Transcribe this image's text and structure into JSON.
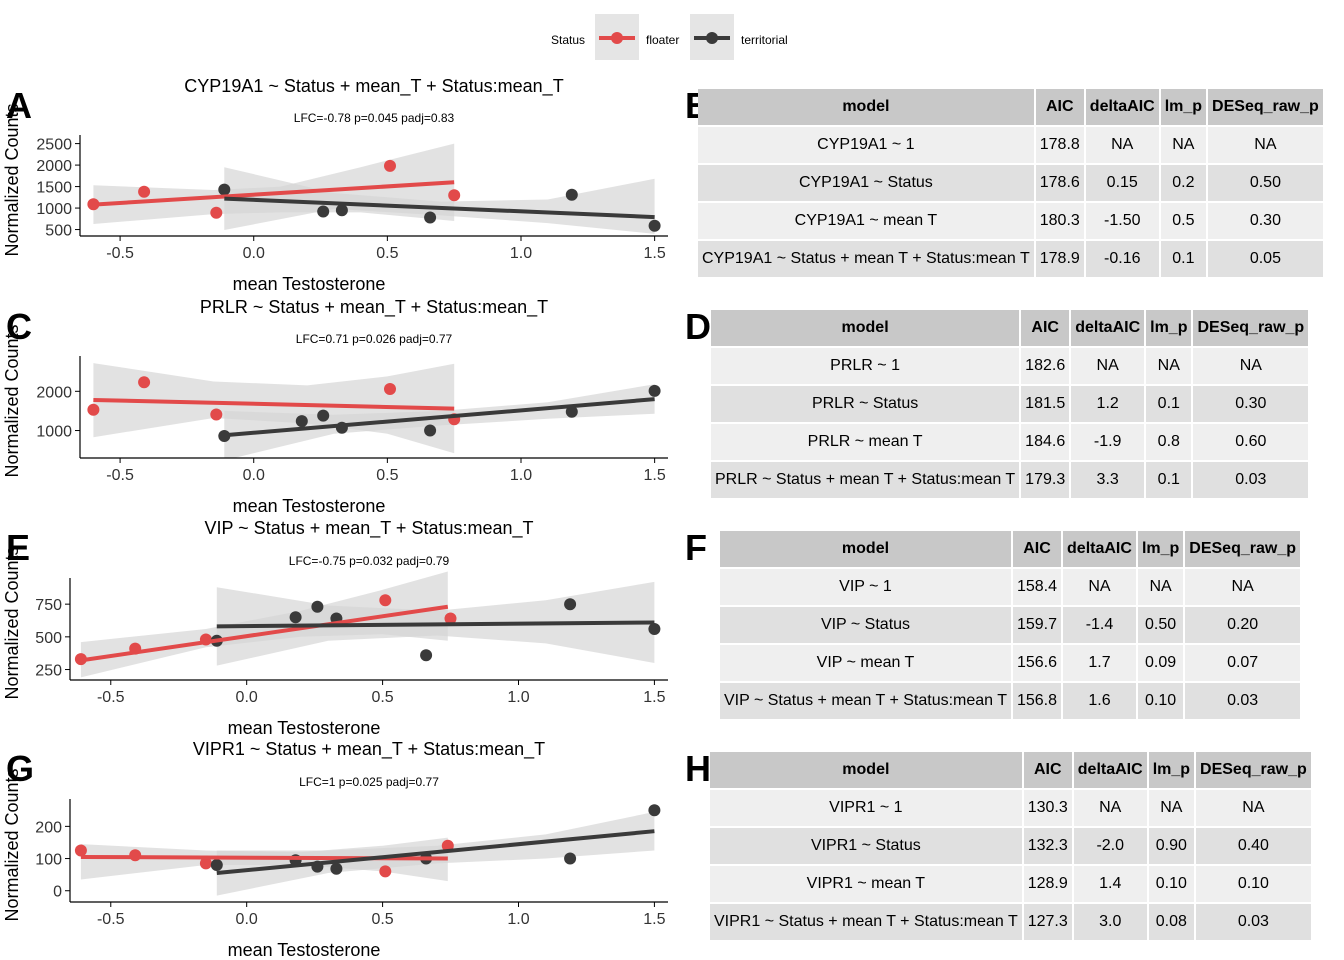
{
  "legend": {
    "title": "Status",
    "entries": [
      {
        "label": "floater",
        "color": "#e24a4a"
      },
      {
        "label": "territorial",
        "color": "#3a3a3a"
      }
    ]
  },
  "colors": {
    "floater": "#e24a4a",
    "territorial": "#3a3a3a",
    "ribbon": "#d5d5d5",
    "table_header": "#c8c8c8"
  },
  "chart_data": [
    {
      "type": "scatter",
      "letter": "A",
      "title": "CYP19A1 ~ Status + mean_T + Status:mean_T",
      "subtitle": "LFC=-0.78 p=0.045 padj=0.83",
      "xlabel": "mean Testosterone",
      "ylabel": "Normalized Counts",
      "xlim": [
        -0.65,
        1.55
      ],
      "ylim": [
        350,
        2700
      ],
      "xticks": [
        -0.5,
        0.0,
        0.5,
        1.0,
        1.5
      ],
      "xtick_labels": [
        "-0.5",
        "0.0",
        "0.5",
        "1.0",
        "1.5"
      ],
      "yticks": [
        500,
        1000,
        1500,
        2000,
        2500
      ],
      "ytick_labels": [
        "500",
        "1000",
        "1500",
        "2000",
        "2500"
      ],
      "series": [
        {
          "name": "floater",
          "points": [
            [
              -0.6,
              1090
            ],
            [
              -0.41,
              1380
            ],
            [
              -0.14,
              890
            ],
            [
              0.51,
              1980
            ],
            [
              0.75,
              1300
            ]
          ],
          "fit": [
            [
              -0.6,
              1080
            ],
            [
              0.75,
              1600
            ]
          ],
          "ribbon_upper": [
            [
              -0.6,
              1530
            ],
            [
              -0.15,
              1420
            ],
            [
              0.1,
              1500
            ],
            [
              0.4,
              1950
            ],
            [
              0.75,
              2500
            ]
          ],
          "ribbon_lower": [
            [
              -0.6,
              630
            ],
            [
              -0.15,
              860
            ],
            [
              0.1,
              900
            ],
            [
              0.4,
              900
            ],
            [
              0.75,
              700
            ]
          ]
        },
        {
          "name": "territorial",
          "points": [
            [
              -0.11,
              1430
            ],
            [
              0.26,
              920
            ],
            [
              0.33,
              950
            ],
            [
              0.66,
              780
            ],
            [
              1.19,
              1310
            ],
            [
              1.5,
              590
            ]
          ],
          "fit": [
            [
              -0.11,
              1220
            ],
            [
              1.5,
              790
            ]
          ],
          "ribbon_upper": [
            [
              -0.11,
              1950
            ],
            [
              0.3,
              1350
            ],
            [
              0.7,
              1150
            ],
            [
              1.1,
              1200
            ],
            [
              1.5,
              1680
            ]
          ],
          "ribbon_lower": [
            [
              -0.11,
              490
            ],
            [
              0.3,
              980
            ],
            [
              0.7,
              830
            ],
            [
              1.1,
              650
            ],
            [
              1.5,
              400
            ]
          ]
        }
      ]
    },
    {
      "type": "scatter",
      "letter": "C",
      "title": "PRLR ~ Status + mean_T + Status:mean_T",
      "subtitle": "LFC=0.71 p=0.026 padj=0.77",
      "xlabel": "mean Testosterone",
      "ylabel": "Normalized Counts",
      "xlim": [
        -0.65,
        1.55
      ],
      "ylim": [
        300,
        2900
      ],
      "xticks": [
        -0.5,
        0.0,
        0.5,
        1.0,
        1.5
      ],
      "xtick_labels": [
        "-0.5",
        "0.0",
        "0.5",
        "1.0",
        "1.5"
      ],
      "yticks": [
        1000,
        2000
      ],
      "ytick_labels": [
        "1000",
        "2000"
      ],
      "series": [
        {
          "name": "floater",
          "points": [
            [
              -0.6,
              1530
            ],
            [
              -0.41,
              2230
            ],
            [
              -0.14,
              1410
            ],
            [
              0.51,
              2060
            ],
            [
              0.75,
              1290
            ]
          ],
          "fit": [
            [
              -0.6,
              1780
            ],
            [
              0.75,
              1560
            ]
          ],
          "ribbon_upper": [
            [
              -0.6,
              2720
            ],
            [
              -0.15,
              2250
            ],
            [
              0.2,
              2150
            ],
            [
              0.5,
              2380
            ],
            [
              0.75,
              2700
            ]
          ],
          "ribbon_lower": [
            [
              -0.6,
              830
            ],
            [
              -0.15,
              1320
            ],
            [
              0.2,
              1180
            ],
            [
              0.5,
              920
            ],
            [
              0.75,
              420
            ]
          ]
        },
        {
          "name": "territorial",
          "points": [
            [
              -0.11,
              860
            ],
            [
              0.18,
              1240
            ],
            [
              0.26,
              1380
            ],
            [
              0.33,
              1070
            ],
            [
              0.66,
              1000
            ],
            [
              1.19,
              1480
            ],
            [
              1.5,
              2010
            ]
          ],
          "fit": [
            [
              -0.11,
              880
            ],
            [
              1.5,
              1800
            ]
          ],
          "ribbon_upper": [
            [
              -0.11,
              1500
            ],
            [
              0.3,
              1400
            ],
            [
              0.7,
              1500
            ],
            [
              1.1,
              1720
            ],
            [
              1.5,
              2180
            ]
          ],
          "ribbon_lower": [
            [
              -0.11,
              240
            ],
            [
              0.3,
              920
            ],
            [
              0.7,
              1130
            ],
            [
              1.1,
              1300
            ],
            [
              1.5,
              1430
            ]
          ]
        }
      ]
    },
    {
      "type": "scatter",
      "letter": "E",
      "title": "VIP ~ Status + mean_T + Status:mean_T",
      "subtitle": "LFC=-0.75 p=0.032 padj=0.79",
      "xlabel": "mean Testosterone",
      "ylabel": "Normalized Counts",
      "xlim": [
        -0.65,
        1.55
      ],
      "ylim": [
        170,
        950
      ],
      "xticks": [
        -0.5,
        0.0,
        0.5,
        1.0,
        1.5
      ],
      "xtick_labels": [
        "-0.5",
        "0.0",
        "0.5",
        "1.0",
        "1.5"
      ],
      "yticks": [
        250,
        500,
        750
      ],
      "ytick_labels": [
        "250",
        "500",
        "750"
      ],
      "series": [
        {
          "name": "floater",
          "points": [
            [
              -0.61,
              330
            ],
            [
              -0.41,
              410
            ],
            [
              -0.15,
              480
            ],
            [
              0.51,
              780
            ],
            [
              0.75,
              640
            ]
          ],
          "fit": [
            [
              -0.61,
              320
            ],
            [
              0.74,
              730
            ]
          ],
          "ribbon_upper": [
            [
              -0.61,
              460
            ],
            [
              -0.15,
              560
            ],
            [
              0.2,
              700
            ],
            [
              0.5,
              860
            ],
            [
              0.74,
              1000
            ]
          ],
          "ribbon_lower": [
            [
              -0.61,
              190
            ],
            [
              -0.15,
              420
            ],
            [
              0.2,
              500
            ],
            [
              0.5,
              520
            ],
            [
              0.74,
              470
            ]
          ]
        },
        {
          "name": "territorial",
          "points": [
            [
              -0.11,
              470
            ],
            [
              0.18,
              650
            ],
            [
              0.26,
              730
            ],
            [
              0.33,
              640
            ],
            [
              0.66,
              360
            ],
            [
              1.19,
              750
            ],
            [
              1.5,
              560
            ]
          ],
          "fit": [
            [
              -0.11,
              580
            ],
            [
              1.5,
              610
            ]
          ],
          "ribbon_upper": [
            [
              -0.11,
              880
            ],
            [
              0.3,
              740
            ],
            [
              0.7,
              700
            ],
            [
              1.1,
              780
            ],
            [
              1.5,
              920
            ]
          ],
          "ribbon_lower": [
            [
              -0.11,
              280
            ],
            [
              0.3,
              470
            ],
            [
              0.7,
              510
            ],
            [
              1.1,
              450
            ],
            [
              1.5,
              300
            ]
          ]
        }
      ]
    },
    {
      "type": "scatter",
      "letter": "G",
      "title": "VIPR1 ~ Status + mean_T + Status:mean_T",
      "subtitle": "LFC=1 p=0.025 padj=0.77",
      "xlabel": "mean Testosterone",
      "ylabel": "Normalized Counts",
      "xlim": [
        -0.65,
        1.55
      ],
      "ylim": [
        -35,
        285
      ],
      "xticks": [
        -0.5,
        0.0,
        0.5,
        1.0,
        1.5
      ],
      "xtick_labels": [
        "-0.5",
        "0.0",
        "0.5",
        "1.0",
        "1.5"
      ],
      "yticks": [
        0,
        100,
        200
      ],
      "ytick_labels": [
        "0",
        "100",
        "200"
      ],
      "series": [
        {
          "name": "floater",
          "points": [
            [
              -0.61,
              125
            ],
            [
              -0.41,
              110
            ],
            [
              -0.15,
              85
            ],
            [
              0.51,
              60
            ],
            [
              0.74,
              140
            ]
          ],
          "fit": [
            [
              -0.61,
              105
            ],
            [
              0.74,
              100
            ]
          ],
          "ribbon_upper": [
            [
              -0.61,
              145
            ],
            [
              -0.15,
              125
            ],
            [
              0.2,
              120
            ],
            [
              0.5,
              140
            ],
            [
              0.74,
              165
            ]
          ],
          "ribbon_lower": [
            [
              -0.61,
              35
            ],
            [
              -0.15,
              80
            ],
            [
              0.2,
              80
            ],
            [
              0.5,
              60
            ],
            [
              0.74,
              30
            ]
          ]
        },
        {
          "name": "territorial",
          "points": [
            [
              -0.11,
              80
            ],
            [
              0.18,
              95
            ],
            [
              0.26,
              75
            ],
            [
              0.33,
              68
            ],
            [
              0.66,
              100
            ],
            [
              1.19,
              100
            ],
            [
              1.5,
              250
            ]
          ],
          "fit": [
            [
              -0.11,
              55
            ],
            [
              1.5,
              185
            ]
          ],
          "ribbon_upper": [
            [
              -0.11,
              125
            ],
            [
              0.3,
              125
            ],
            [
              0.7,
              140
            ],
            [
              1.1,
              175
            ],
            [
              1.5,
              245
            ]
          ],
          "ribbon_lower": [
            [
              -0.11,
              -15
            ],
            [
              0.3,
              55
            ],
            [
              0.7,
              85
            ],
            [
              1.1,
              100
            ],
            [
              1.5,
              125
            ]
          ]
        }
      ]
    }
  ],
  "tables": [
    {
      "letter": "B",
      "headers": [
        "model",
        "AIC",
        "deltaAIC",
        "lm_p",
        "DESeq_raw_p"
      ],
      "rows": [
        [
          "CYP19A1 ~ 1",
          "178.8",
          "NA",
          "NA",
          "NA"
        ],
        [
          "CYP19A1 ~ Status",
          "178.6",
          "0.15",
          "0.2",
          "0.50"
        ],
        [
          "CYP19A1 ~ mean T",
          "180.3",
          "-1.50",
          "0.5",
          "0.30"
        ],
        [
          "CYP19A1 ~ Status + mean T + Status:mean T",
          "178.9",
          "-0.16",
          "0.1",
          "0.05"
        ]
      ]
    },
    {
      "letter": "D",
      "headers": [
        "model",
        "AIC",
        "deltaAIC",
        "lm_p",
        "DESeq_raw_p"
      ],
      "rows": [
        [
          "PRLR ~ 1",
          "182.6",
          "NA",
          "NA",
          "NA"
        ],
        [
          "PRLR ~ Status",
          "181.5",
          "1.2",
          "0.1",
          "0.30"
        ],
        [
          "PRLR ~ mean T",
          "184.6",
          "-1.9",
          "0.8",
          "0.60"
        ],
        [
          "PRLR ~ Status + mean T + Status:mean T",
          "179.3",
          "3.3",
          "0.1",
          "0.03"
        ]
      ]
    },
    {
      "letter": "F",
      "headers": [
        "model",
        "AIC",
        "deltaAIC",
        "lm_p",
        "DESeq_raw_p"
      ],
      "rows": [
        [
          "VIP ~ 1",
          "158.4",
          "NA",
          "NA",
          "NA"
        ],
        [
          "VIP ~ Status",
          "159.7",
          "-1.4",
          "0.50",
          "0.20"
        ],
        [
          "VIP ~ mean T",
          "156.6",
          "1.7",
          "0.09",
          "0.07"
        ],
        [
          "VIP ~ Status + mean T + Status:mean T",
          "156.8",
          "1.6",
          "0.10",
          "0.03"
        ]
      ]
    },
    {
      "letter": "H",
      "headers": [
        "model",
        "AIC",
        "deltaAIC",
        "lm_p",
        "DESeq_raw_p"
      ],
      "rows": [
        [
          "VIPR1 ~ 1",
          "130.3",
          "NA",
          "NA",
          "NA"
        ],
        [
          "VIPR1 ~ Status",
          "132.3",
          "-2.0",
          "0.90",
          "0.40"
        ],
        [
          "VIPR1 ~ mean T",
          "128.9",
          "1.4",
          "0.10",
          "0.10"
        ],
        [
          "VIPR1 ~ Status + mean T + Status:mean T",
          "127.3",
          "3.0",
          "0.08",
          "0.03"
        ]
      ]
    }
  ]
}
